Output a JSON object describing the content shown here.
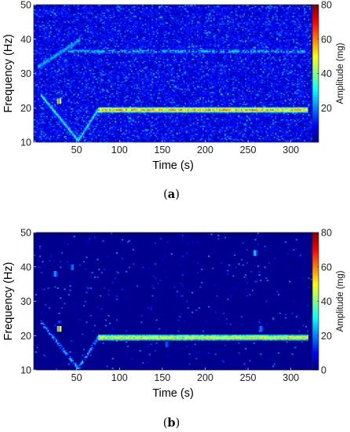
{
  "colors": {
    "colormap": "jet",
    "axis_color": "#222222",
    "background": "#ffffff"
  },
  "chart_data": [
    {
      "type": "heatmap",
      "panel_label": "(a)",
      "xlabel": "Time (s)",
      "ylabel": "Frequency (Hz)",
      "colorbar_label": "Amplitude (mg)",
      "xlim": [
        0,
        325
      ],
      "ylim": [
        10,
        50
      ],
      "clim": [
        0,
        80
      ],
      "x_ticks": [
        50,
        100,
        150,
        200,
        250,
        300
      ],
      "y_ticks": [
        10,
        20,
        30,
        40,
        50
      ],
      "colorbar_ticks": [
        20,
        40,
        60,
        80
      ],
      "noise_floor": "high",
      "features": [
        {
          "name": "constant_line",
          "t_start": 75,
          "t_end": 320,
          "freq": 19.5,
          "amplitude": 62
        },
        {
          "name": "sweep_down",
          "t_start": 8,
          "t_end": 52,
          "f_start": 24,
          "f_end": 10.5,
          "amplitude": 38
        },
        {
          "name": "sweep_up",
          "t_start": 52,
          "t_end": 75,
          "f_start": 10.5,
          "f_end": 19.5,
          "amplitude": 38
        },
        {
          "name": "harmonic_down",
          "t_start": 5,
          "t_end": 55,
          "f_start": 32,
          "f_end": 40,
          "amplitude": 28
        },
        {
          "name": "harmonic_line",
          "t_start": 40,
          "t_end": 320,
          "freq": 36.5,
          "amplitude": 30
        },
        {
          "name": "transient",
          "t": 30,
          "freq": 22,
          "amplitude": 70
        }
      ]
    },
    {
      "type": "heatmap",
      "panel_label": "(b)",
      "xlabel": "Time (s)",
      "ylabel": "Frequency (Hz)",
      "colorbar_label": "Amplitude (mg)",
      "xlim": [
        0,
        325
      ],
      "ylim": [
        10,
        50
      ],
      "clim": [
        0,
        80
      ],
      "x_ticks": [
        50,
        100,
        150,
        200,
        250,
        300
      ],
      "y_ticks": [
        10,
        20,
        30,
        40,
        50
      ],
      "colorbar_ticks": [
        0,
        20,
        40,
        60,
        80
      ],
      "noise_floor": "low",
      "features": [
        {
          "name": "constant_line",
          "t_start": 75,
          "t_end": 320,
          "freq": 19.5,
          "amplitude": 55
        },
        {
          "name": "sweep_down",
          "t_start": 8,
          "t_end": 52,
          "f_start": 24,
          "f_end": 10.5,
          "amplitude": 32
        },
        {
          "name": "sweep_up",
          "t_start": 52,
          "t_end": 75,
          "f_start": 10.5,
          "f_end": 19.5,
          "amplitude": 32
        },
        {
          "name": "transient",
          "t": 30,
          "freq": 22,
          "amplitude": 68
        },
        {
          "name": "scatter",
          "t": 25,
          "freq": 38,
          "amplitude": 25
        },
        {
          "name": "scatter",
          "t": 45,
          "freq": 40,
          "amplitude": 22
        },
        {
          "name": "scatter",
          "t": 258,
          "freq": 44,
          "amplitude": 30
        },
        {
          "name": "scatter",
          "t": 155,
          "freq": 17.5,
          "amplitude": 20
        },
        {
          "name": "scatter",
          "t": 265,
          "freq": 22,
          "amplitude": 22
        }
      ]
    }
  ]
}
